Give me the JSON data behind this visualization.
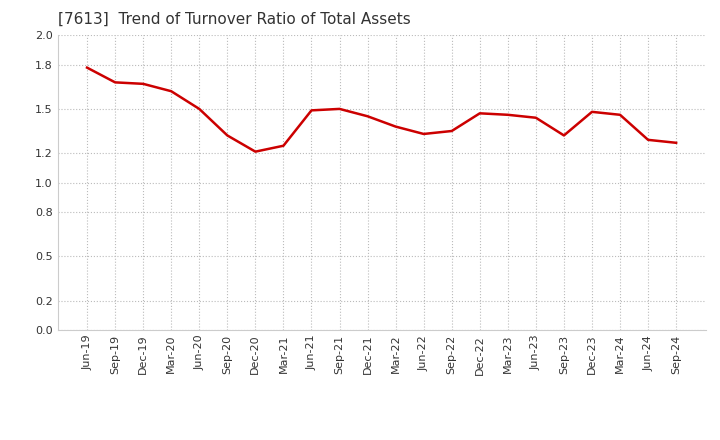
{
  "title": "[7613]  Trend of Turnover Ratio of Total Assets",
  "x_labels": [
    "Jun-19",
    "Sep-19",
    "Dec-19",
    "Mar-20",
    "Jun-20",
    "Sep-20",
    "Dec-20",
    "Mar-21",
    "Jun-21",
    "Sep-21",
    "Dec-21",
    "Mar-22",
    "Jun-22",
    "Sep-22",
    "Dec-22",
    "Mar-23",
    "Jun-23",
    "Sep-23",
    "Dec-23",
    "Mar-24",
    "Jun-24",
    "Sep-24"
  ],
  "y_values": [
    1.78,
    1.68,
    1.67,
    1.62,
    1.5,
    1.32,
    1.21,
    1.25,
    1.49,
    1.5,
    1.45,
    1.38,
    1.33,
    1.35,
    1.47,
    1.46,
    1.44,
    1.32,
    1.48,
    1.46,
    1.29,
    1.27
  ],
  "line_color": "#cc0000",
  "line_width": 1.8,
  "ylim": [
    0.0,
    2.0
  ],
  "yticks": [
    0.0,
    0.2,
    0.5,
    0.8,
    1.0,
    1.2,
    1.5,
    1.8,
    2.0
  ],
  "background_color": "#ffffff",
  "grid_color": "#bbbbbb",
  "title_fontsize": 11,
  "tick_fontsize": 8
}
